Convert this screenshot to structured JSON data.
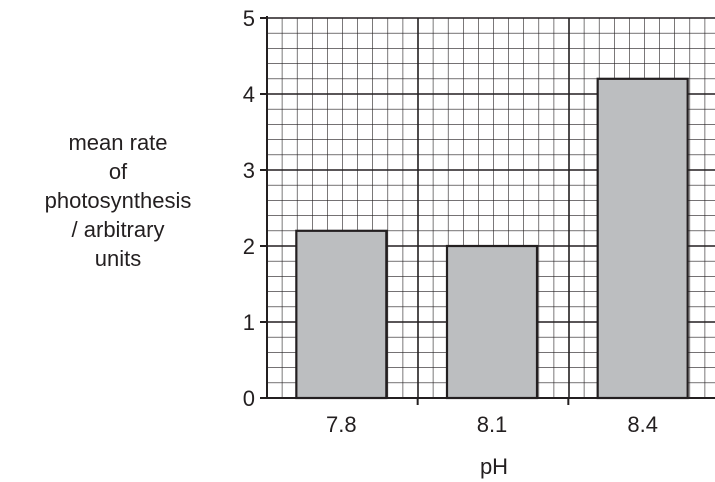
{
  "chart_data": {
    "type": "bar",
    "categories": [
      "7.8",
      "8.1",
      "8.4"
    ],
    "values": [
      2.2,
      2.0,
      4.2
    ],
    "xlabel": "pH",
    "ylabel_lines": [
      "mean rate",
      "of",
      "photosynthesis",
      "/ arbitrary",
      "units"
    ],
    "ylim": [
      0,
      5
    ],
    "yticks": [
      "0",
      "1",
      "2",
      "3",
      "4",
      "5"
    ],
    "grid": true,
    "bar_color": "#bcbec0",
    "grid_color": "#231f20"
  }
}
